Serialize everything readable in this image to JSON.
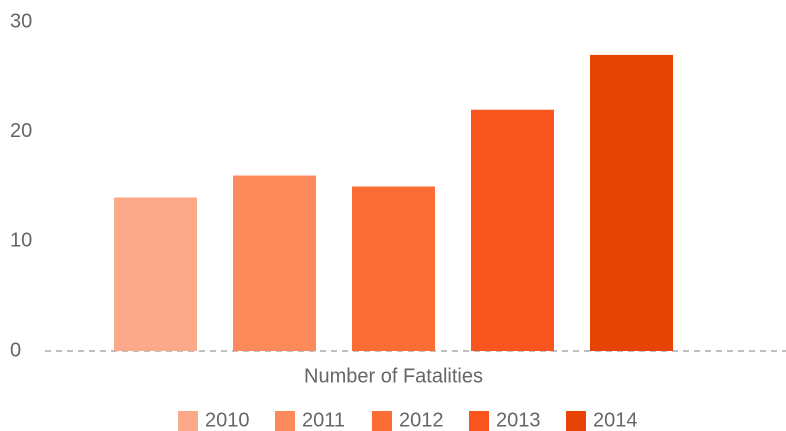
{
  "chart_data": {
    "type": "bar",
    "categories": [
      "Number of Fatalities"
    ],
    "series": [
      {
        "name": "2010",
        "color": "#fca98a",
        "values": [
          14
        ]
      },
      {
        "name": "2011",
        "color": "#fd8a5a",
        "values": [
          16
        ]
      },
      {
        "name": "2012",
        "color": "#fc6d35",
        "values": [
          15
        ]
      },
      {
        "name": "2013",
        "color": "#f9561f",
        "values": [
          22
        ]
      },
      {
        "name": "2014",
        "color": "#e64405",
        "values": [
          27
        ]
      }
    ],
    "ylim": [
      0,
      30
    ],
    "yticks": [
      0,
      10,
      20,
      30
    ],
    "grid": false,
    "legend": "bottom"
  }
}
